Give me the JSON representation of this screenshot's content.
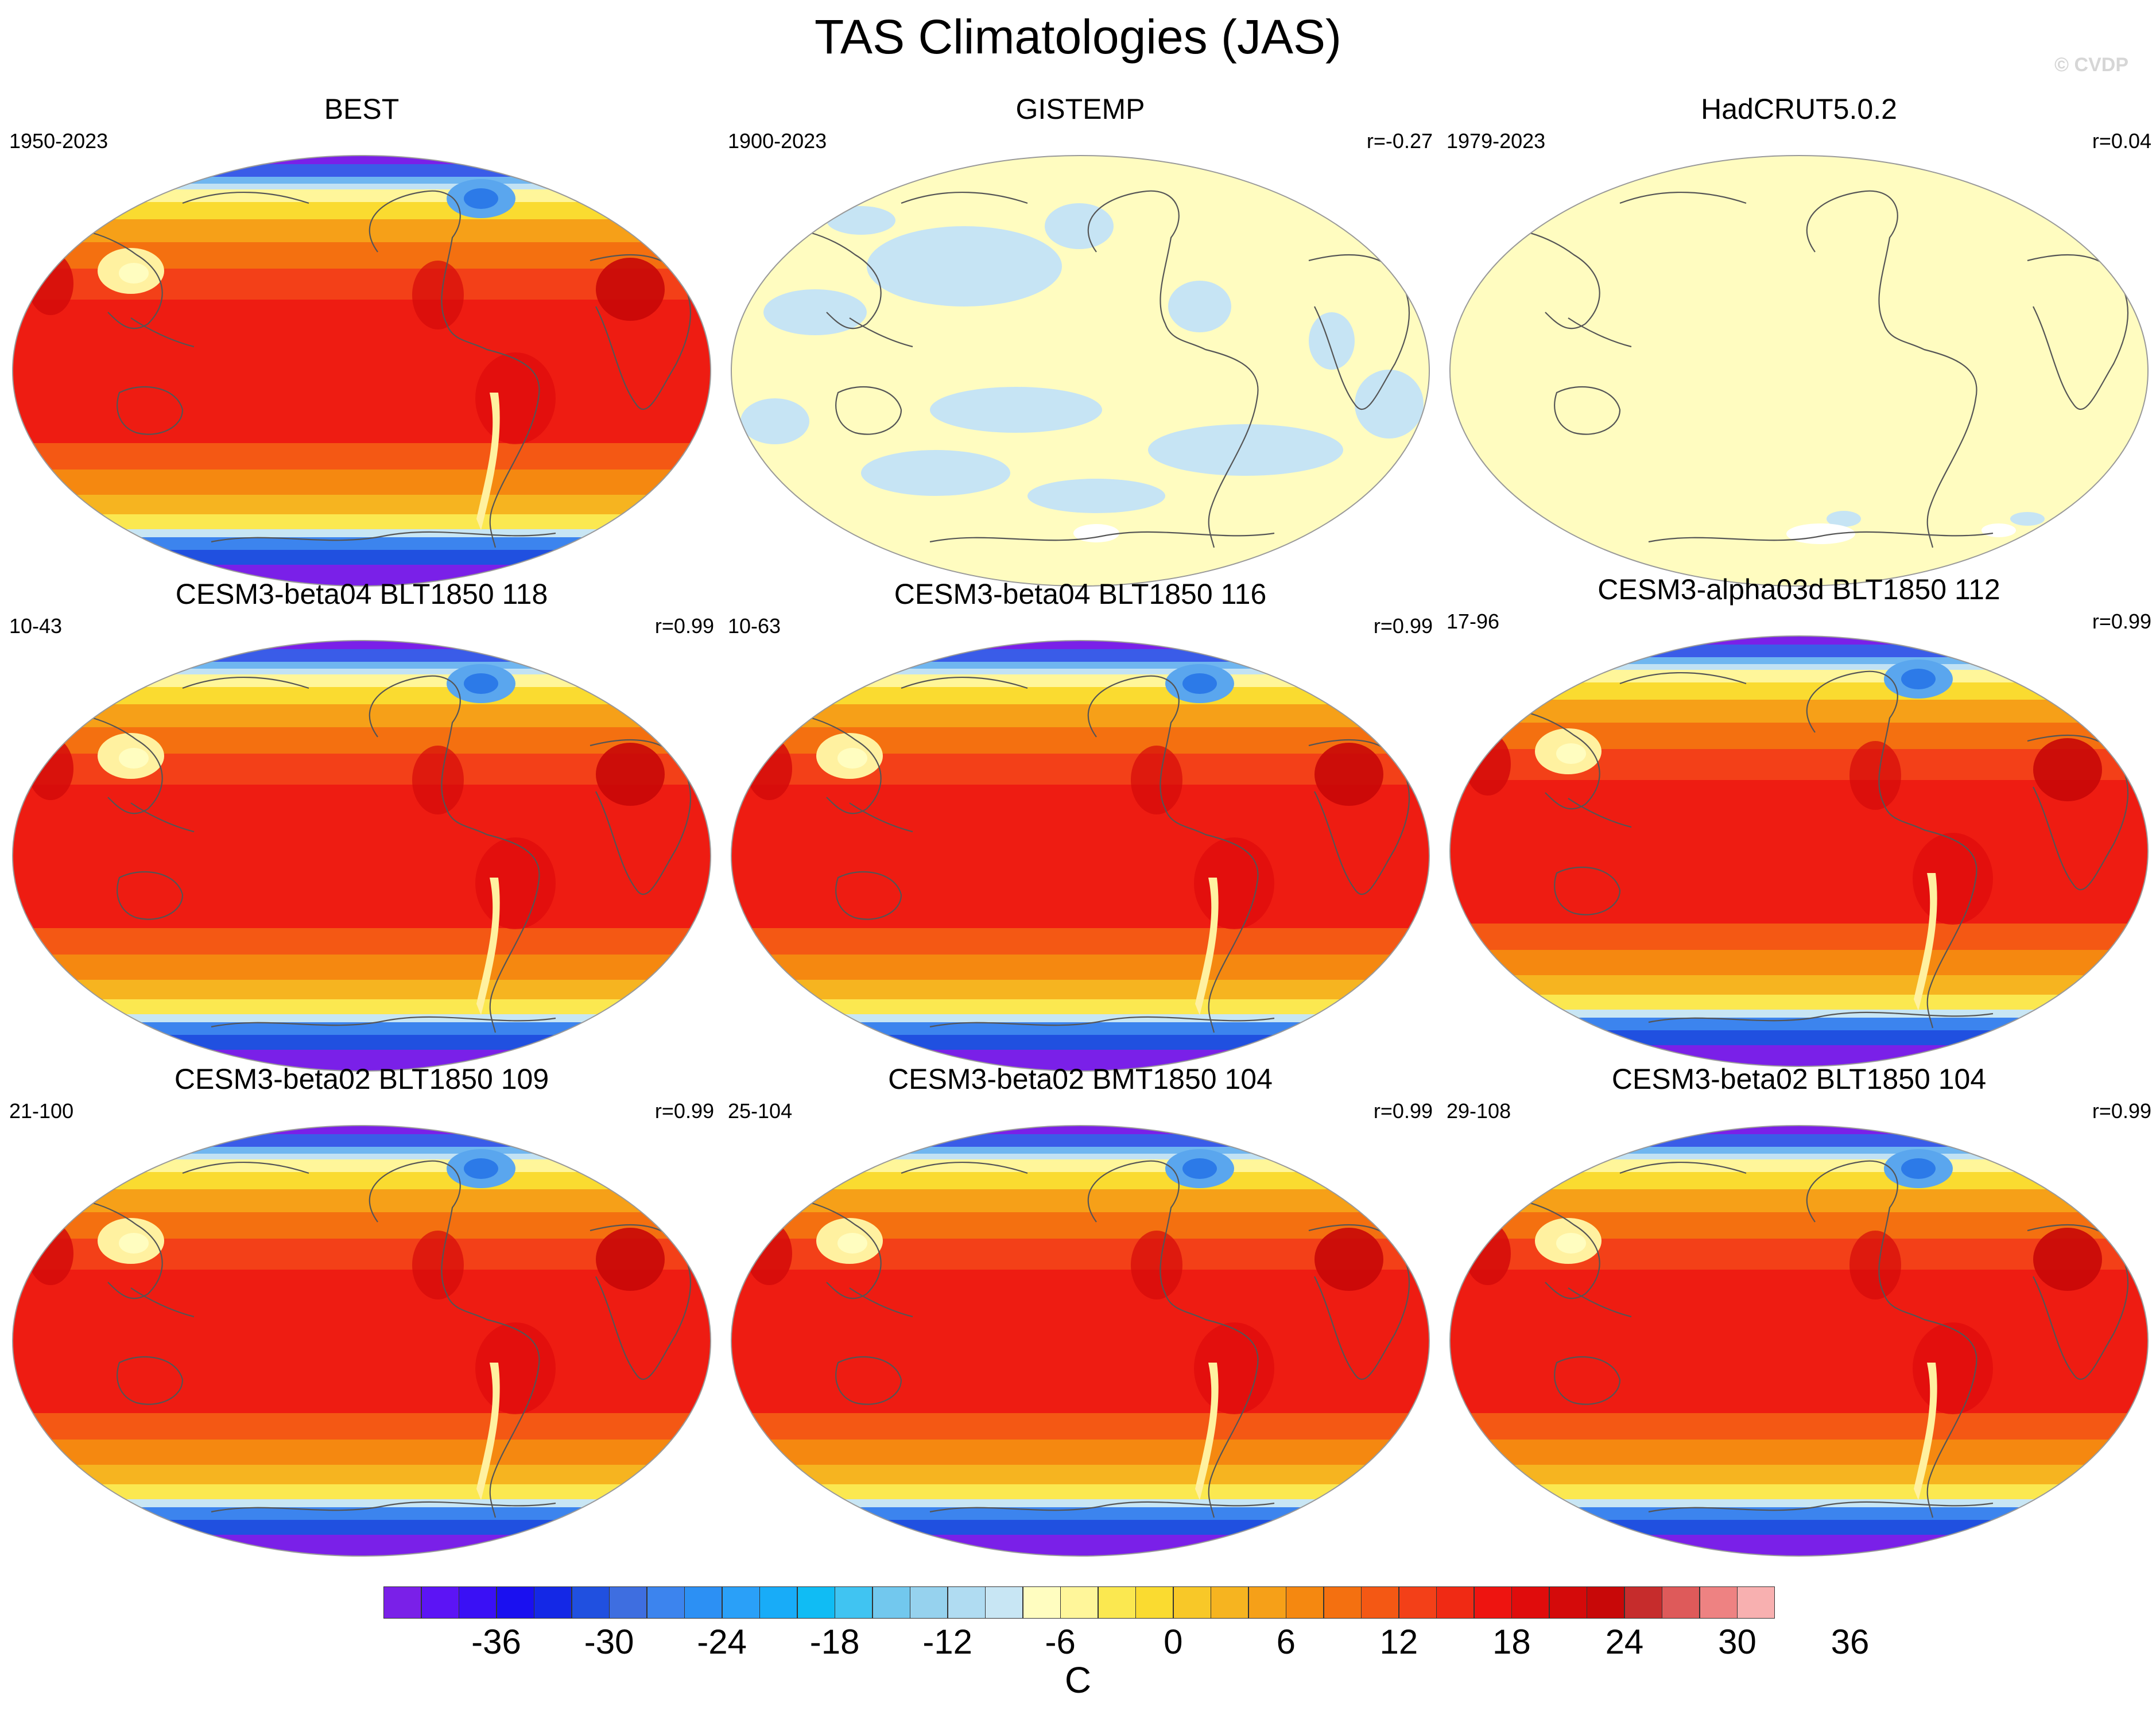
{
  "title": "TAS Climatologies (JAS)",
  "watermark": "© CVDP",
  "panels": [
    {
      "title": "BEST",
      "left": "1950-2023",
      "right": "",
      "kind": "warm"
    },
    {
      "title": "GISTEMP",
      "left": "1900-2023",
      "right": "r=-0.27",
      "kind": "gistemp"
    },
    {
      "title": "HadCRUT5.0.2",
      "left": "1979-2023",
      "right": "r=0.04",
      "kind": "hadcrut"
    },
    {
      "title": "CESM3-beta04 BLT1850 118",
      "left": "10-43",
      "right": "r=0.99",
      "kind": "warm"
    },
    {
      "title": "CESM3-beta04 BLT1850 116",
      "left": "10-63",
      "right": "r=0.99",
      "kind": "warm"
    },
    {
      "title": "CESM3-alpha03d BLT1850 112",
      "left": "17-96",
      "right": "r=0.99",
      "kind": "warm"
    },
    {
      "title": "CESM3-beta02 BLT1850 109",
      "left": "21-100",
      "right": "r=0.99",
      "kind": "warm"
    },
    {
      "title": "CESM3-beta02 BMT1850 104",
      "left": "25-104",
      "right": "r=0.99",
      "kind": "warm"
    },
    {
      "title": "CESM3-beta02 BLT1850 104",
      "left": "29-108",
      "right": "r=0.99",
      "kind": "warm"
    }
  ],
  "colorbar": {
    "units": "C",
    "ticks": [
      "-36",
      "-30",
      "-24",
      "-18",
      "-12",
      "-6",
      "0",
      "6",
      "12",
      "18",
      "24",
      "30",
      "36"
    ],
    "colors": [
      "#7a20e8",
      "#5c14f5",
      "#3a10f5",
      "#1a10f0",
      "#1428e6",
      "#2050e0",
      "#3e6ee0",
      "#3c84ee",
      "#2c90f4",
      "#2aa0f8",
      "#18acf8",
      "#10bcf4",
      "#40c4f2",
      "#72c8ee",
      "#96d2ee",
      "#b0dcf2",
      "#c8e6f4",
      "#fffdc0",
      "#fff69a",
      "#fbe850",
      "#fadb30",
      "#f8c828",
      "#f6b420",
      "#f6a018",
      "#f58810",
      "#f47010",
      "#f45814",
      "#f34018",
      "#f02a14",
      "#ee1410",
      "#e00c0c",
      "#d40a0a",
      "#c80808",
      "#c62c2c",
      "#de5a5a",
      "#ee8282",
      "#f8b0b0"
    ]
  },
  "chart_data": {
    "type": "map",
    "variable": "TAS",
    "season": "JAS",
    "units": "C",
    "contour_levels": [
      -40,
      -38,
      -36,
      -34,
      -32,
      -30,
      -28,
      -26,
      -24,
      -22,
      -20,
      -18,
      -16,
      -14,
      -12,
      -10,
      -8,
      -6,
      -4,
      -2,
      0,
      2,
      4,
      6,
      8,
      10,
      12,
      14,
      16,
      18,
      20,
      22,
      24,
      26,
      28,
      30,
      32,
      34,
      36,
      38,
      40
    ],
    "datasets": [
      {
        "name": "BEST",
        "years": "1950-2023",
        "r": null
      },
      {
        "name": "GISTEMP",
        "years": "1900-2023",
        "r": -0.27
      },
      {
        "name": "HadCRUT5.0.2",
        "years": "1979-2023",
        "r": 0.04
      },
      {
        "name": "CESM3-beta04 BLT1850 118",
        "years": "10-43",
        "r": 0.99
      },
      {
        "name": "CESM3-beta04 BLT1850 116",
        "years": "10-63",
        "r": 0.99
      },
      {
        "name": "CESM3-alpha03d BLT1850 112",
        "years": "17-96",
        "r": 0.99
      },
      {
        "name": "CESM3-beta02 BLT1850 109",
        "years": "21-100",
        "r": 0.99
      },
      {
        "name": "CESM3-beta02 BMT1850 104",
        "years": "25-104",
        "r": 0.99
      },
      {
        "name": "CESM3-beta02 BLT1850 104",
        "years": "29-108",
        "r": 0.99
      }
    ]
  }
}
